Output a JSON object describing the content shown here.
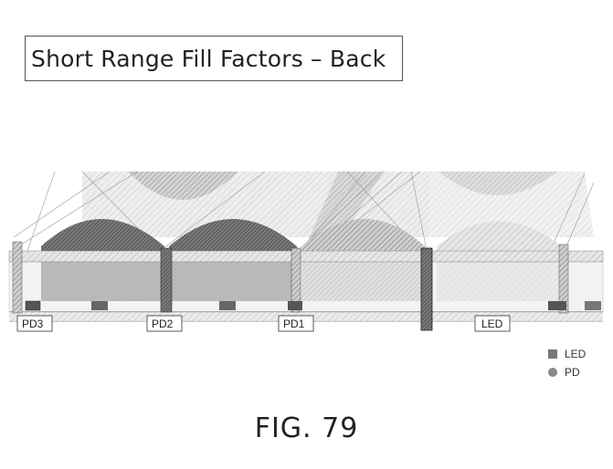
{
  "title": "Short Range Fill Factors – Back",
  "labels": {
    "pd3": "PD3",
    "pd2": "PD2",
    "pd1": "PD1",
    "led": "LED"
  },
  "legend": {
    "led": "LED",
    "pd": "PD"
  },
  "figure_label": "FIG. 79"
}
